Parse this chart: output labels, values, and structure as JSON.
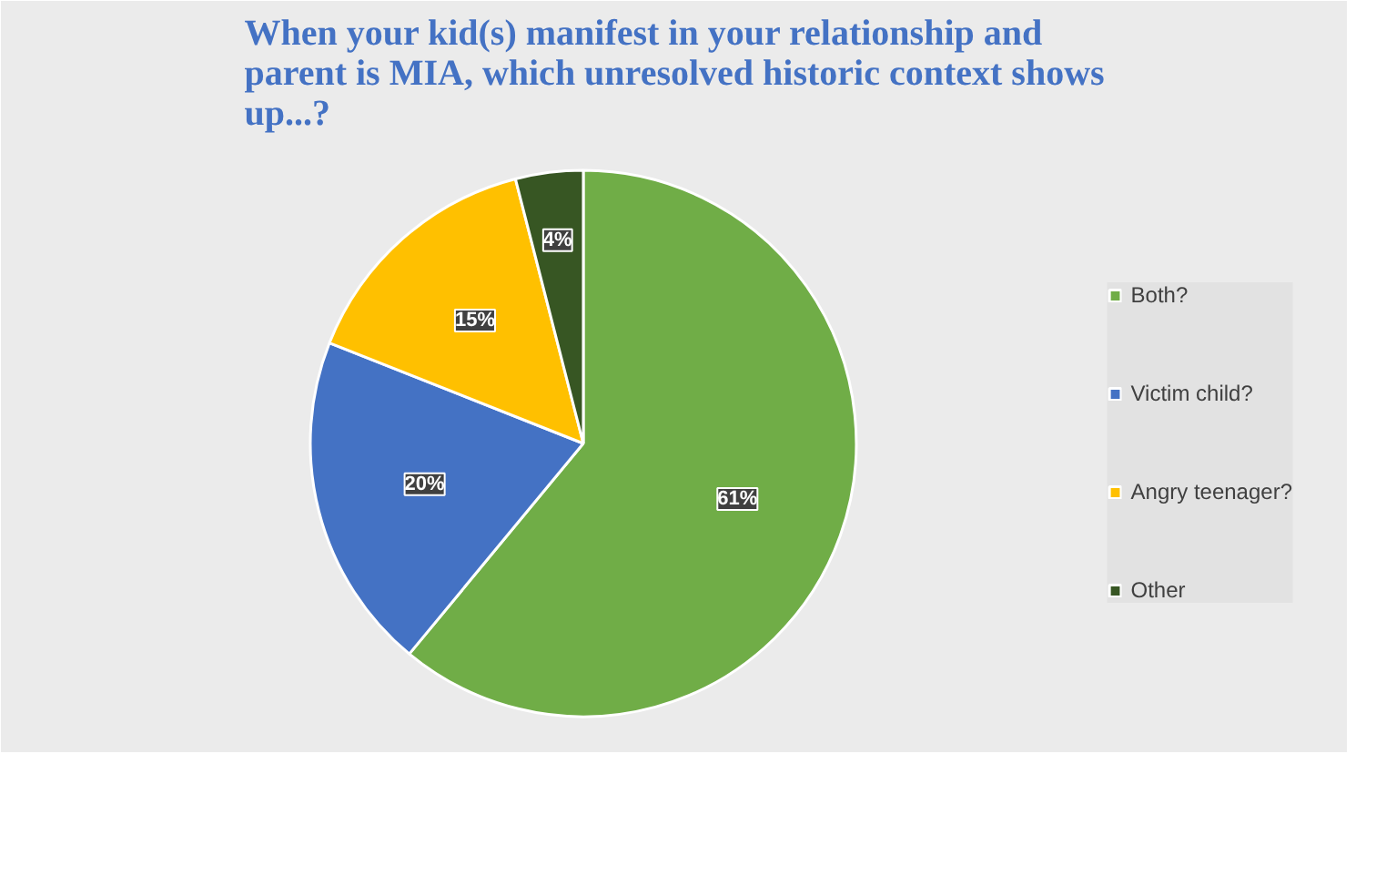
{
  "chart_data": {
    "type": "pie",
    "title": "When your kid(s) manifest in your relationship and parent is MIA, which unresolved historic context shows up...?",
    "categories": [
      "Both?",
      "Victim child?",
      "Angry teenager?",
      "Other"
    ],
    "values": [
      61,
      20,
      15,
      4
    ],
    "colors": [
      "#70ad47",
      "#4472c4",
      "#ffc000",
      "#375623"
    ],
    "value_labels": [
      "61%",
      "20%",
      "15%",
      "4%"
    ],
    "legend": "right"
  }
}
